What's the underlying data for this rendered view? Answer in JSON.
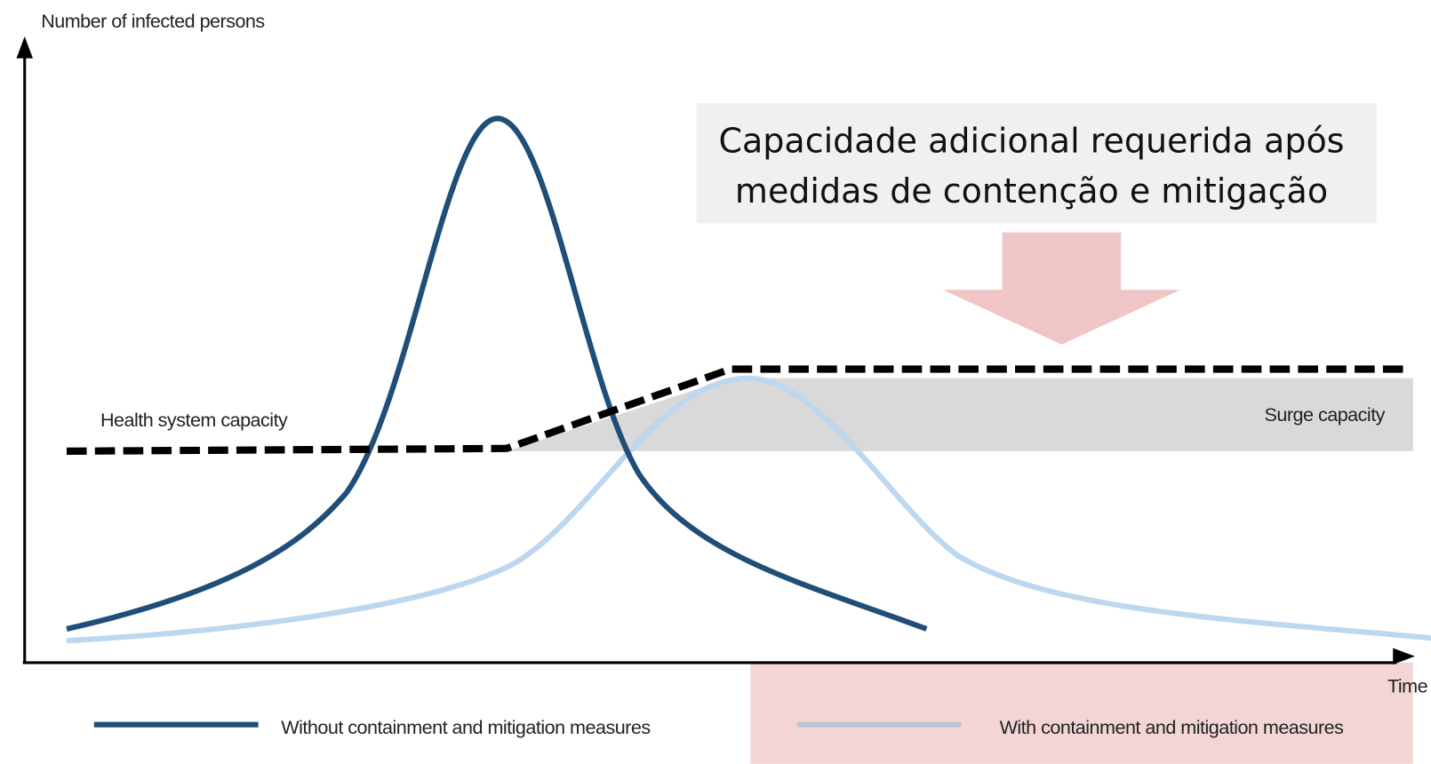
{
  "y_axis_label": "Number of infected persons",
  "x_axis_label": "Time",
  "capacity_label": "Health system capacity",
  "surge_label": "Surge capacity",
  "annotation": {
    "lines": [
      "Capacidade adicional requerida após",
      "medidas  de contenção e mitigação"
    ]
  },
  "legend": [
    "Without containment and mitigation measures",
    "With containment and mitigation measures"
  ]
}
